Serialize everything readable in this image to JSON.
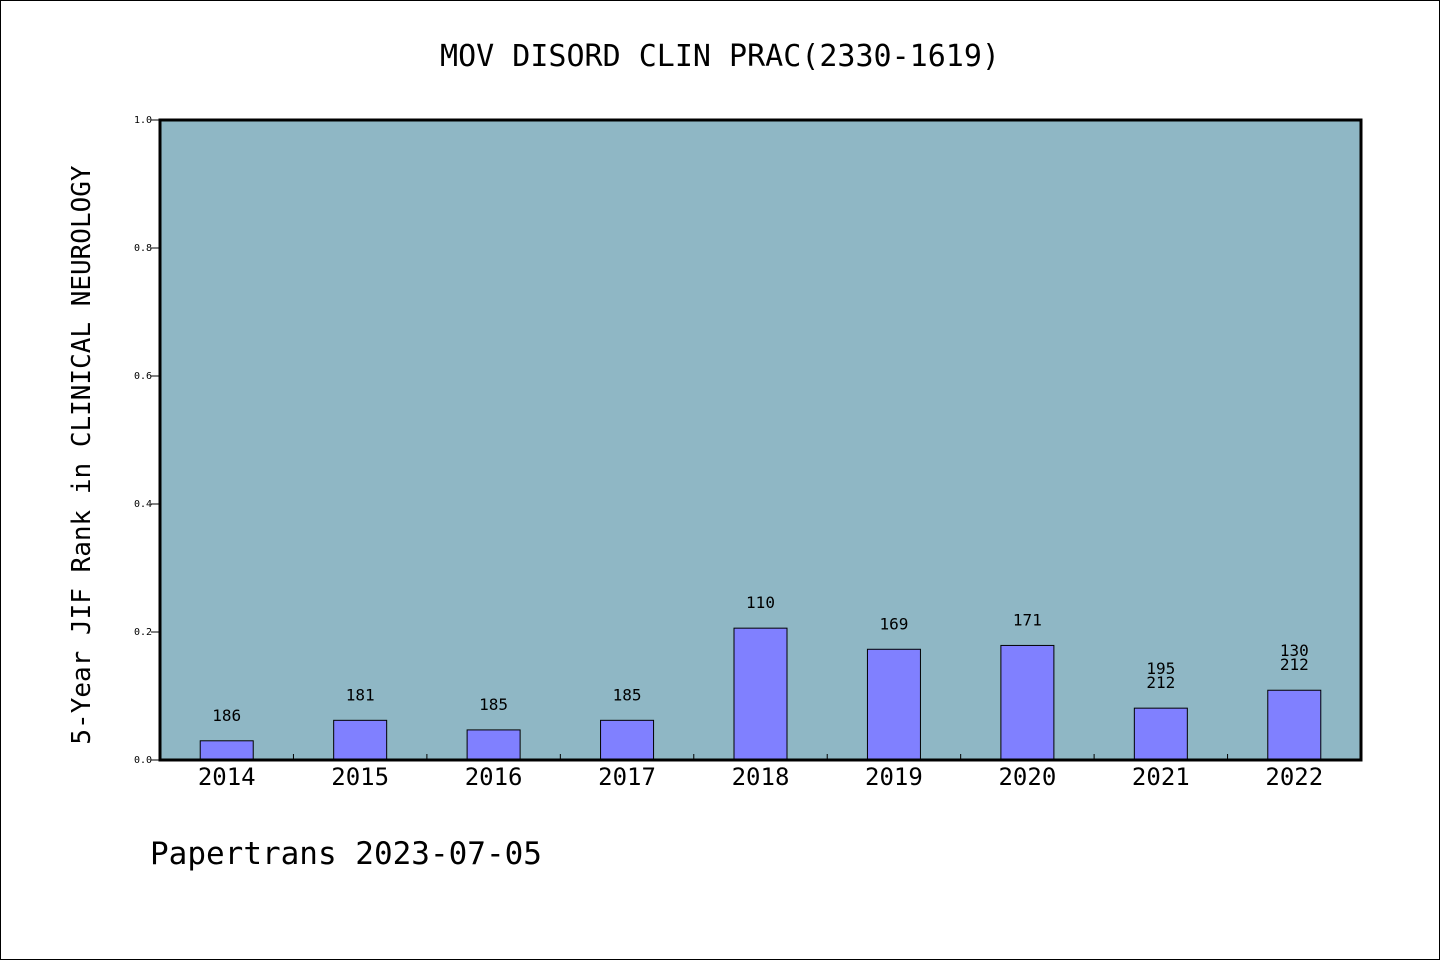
{
  "chart_data": {
    "type": "bar",
    "title": "MOV DISORD CLIN PRAC(2330-1619)",
    "ylabel": "5-Year JIF Rank in CLINICAL NEUROLOGY",
    "xlabel": "",
    "ylim": [
      0,
      1.0
    ],
    "yticks": [
      "0.0",
      "0.2",
      "0.4",
      "0.6",
      "0.8",
      "1.0"
    ],
    "categories": [
      "2014",
      "2015",
      "2016",
      "2017",
      "2018",
      "2019",
      "2020",
      "2021",
      "2022"
    ],
    "values": [
      0.03,
      0.062,
      0.047,
      0.062,
      0.206,
      0.173,
      0.179,
      0.081,
      0.109
    ],
    "labels": [
      [
        "186"
      ],
      [
        "181"
      ],
      [
        "185"
      ],
      [
        "185"
      ],
      [
        "110"
      ],
      [
        "169"
      ],
      [
        "171"
      ],
      [
        "195",
        "212"
      ],
      [
        "130",
        "212"
      ]
    ],
    "grid": false,
    "colors": {
      "plot_bg": "#8fb7c5",
      "bar": "#8080ff",
      "bar_edge": "#000000"
    }
  },
  "footer": "Papertrans 2023-07-05"
}
